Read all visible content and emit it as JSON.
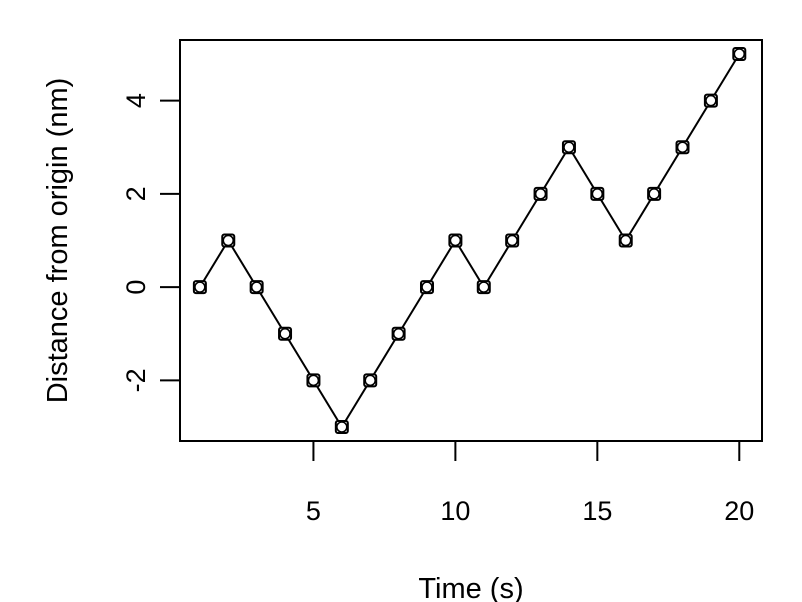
{
  "chart_data": {
    "type": "line",
    "title": "",
    "xlabel": "Time (s)",
    "ylabel": "Distance from origin (nm)",
    "xlim": [
      0.3,
      20.8
    ],
    "ylim": [
      -3.3,
      5.3
    ],
    "x_ticks": [
      5,
      10,
      15,
      20
    ],
    "y_ticks": [
      -2,
      0,
      2,
      4
    ],
    "grid": false,
    "legend": "none",
    "marker": "open-square-circle",
    "colors": {
      "line": "#000000",
      "marker": "#000000",
      "background": "#ffffff"
    },
    "series": [
      {
        "x": [
          1,
          2,
          3,
          4,
          5,
          6,
          7,
          8,
          9,
          10,
          11,
          12,
          13,
          14,
          15,
          16,
          17,
          18,
          19,
          20
        ],
        "y": [
          0,
          1,
          0,
          -1,
          -2,
          -3,
          -2,
          -1,
          0,
          1,
          0,
          1,
          2,
          3,
          2,
          1,
          2,
          3,
          4,
          5
        ]
      }
    ]
  }
}
